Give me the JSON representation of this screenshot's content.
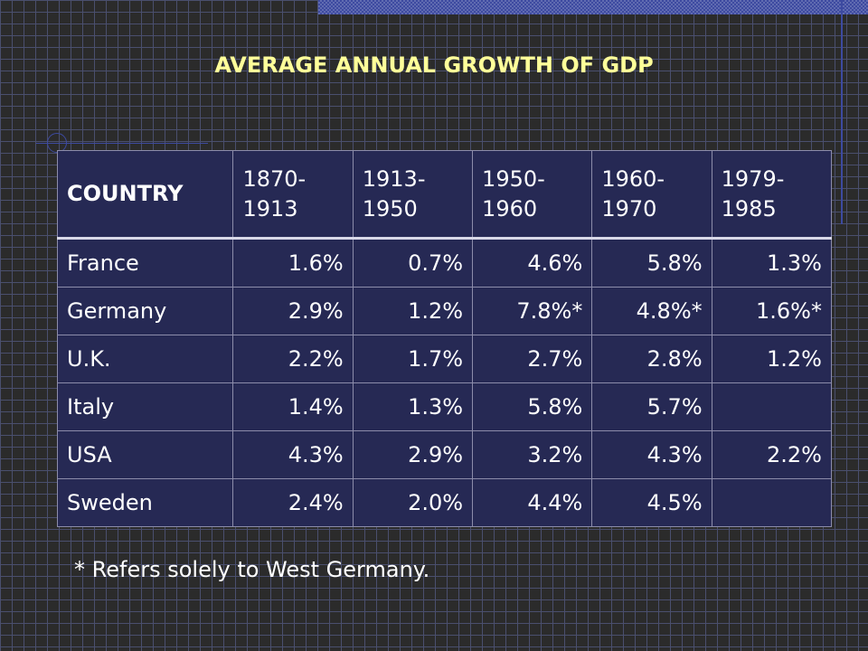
{
  "slide": {
    "title": "AVERAGE ANNUAL GROWTH OF GDP",
    "footnote": "* Refers solely to West Germany."
  },
  "table": {
    "headers": [
      "COUNTRY",
      "1870-\n1913",
      "1913-\n1950",
      "1950-\n1960",
      "1960-\n1970",
      "1979-\n1985"
    ],
    "rows": [
      [
        "France",
        "1.6%",
        "0.7%",
        "4.6%",
        "5.8%",
        "1.3%"
      ],
      [
        "Germany",
        "2.9%",
        "1.2%",
        "7.8%*",
        "4.8%*",
        "1.6%*"
      ],
      [
        "U.K.",
        "2.2%",
        "1.7%",
        "2.7%",
        "2.8%",
        "1.2%"
      ],
      [
        "Italy",
        "1.4%",
        "1.3%",
        "5.8%",
        "5.7%",
        ""
      ],
      [
        "USA",
        "4.3%",
        "2.9%",
        "3.2%",
        "4.3%",
        "2.2%"
      ],
      [
        "Sweden",
        "2.4%",
        "2.0%",
        "4.4%",
        "4.5%",
        ""
      ]
    ]
  },
  "colors": {
    "title": "#ffff99",
    "table_background": "#262954",
    "text": "#ffffff",
    "accent": "#3d4aa0"
  }
}
